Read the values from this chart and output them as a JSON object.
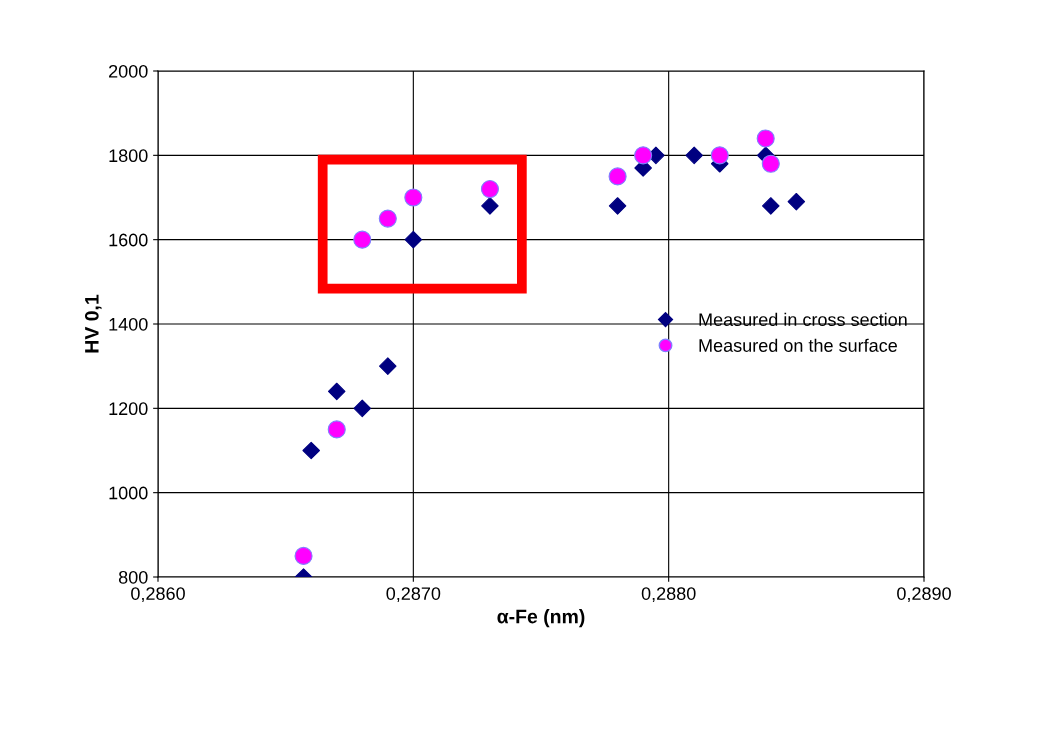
{
  "chart_data": {
    "type": "scatter",
    "xlabel": "α-Fe (nm)",
    "ylabel": "HV 0,1",
    "xlim": [
      0.286,
      0.289
    ],
    "ylim": [
      800,
      2000
    ],
    "xticks": [
      {
        "value": 0.286,
        "label": "0,2860"
      },
      {
        "value": 0.287,
        "label": "0,2870"
      },
      {
        "value": 0.288,
        "label": "0,2880"
      },
      {
        "value": 0.289,
        "label": "0,2890"
      }
    ],
    "yticks": [
      800,
      1000,
      1200,
      1400,
      1600,
      1800,
      2000
    ],
    "grid": true,
    "legend": "right",
    "series": [
      {
        "name": "Measured in cross section",
        "color": "#000080",
        "marker": "diamond",
        "x": [
          0.28657,
          0.2866,
          0.2867,
          0.2868,
          0.2869,
          0.287,
          0.2873,
          0.2878,
          0.2879,
          0.28795,
          0.2881,
          0.2882,
          0.28838,
          0.2884,
          0.2885
        ],
        "values": [
          800,
          1100,
          1240,
          1200,
          1300,
          1600,
          1680,
          1680,
          1770,
          1800,
          1800,
          1780,
          1800,
          1680,
          1690
        ]
      },
      {
        "name": "Measured on the surface",
        "color": "#ff00ff",
        "marker": "circle",
        "x": [
          0.28657,
          0.2867,
          0.2868,
          0.2869,
          0.287,
          0.2873,
          0.2878,
          0.2879,
          0.2882,
          0.28838,
          0.2884
        ],
        "values": [
          850,
          1150,
          1600,
          1650,
          1700,
          1720,
          1750,
          1800,
          1800,
          1840,
          1780
        ]
      }
    ]
  }
}
